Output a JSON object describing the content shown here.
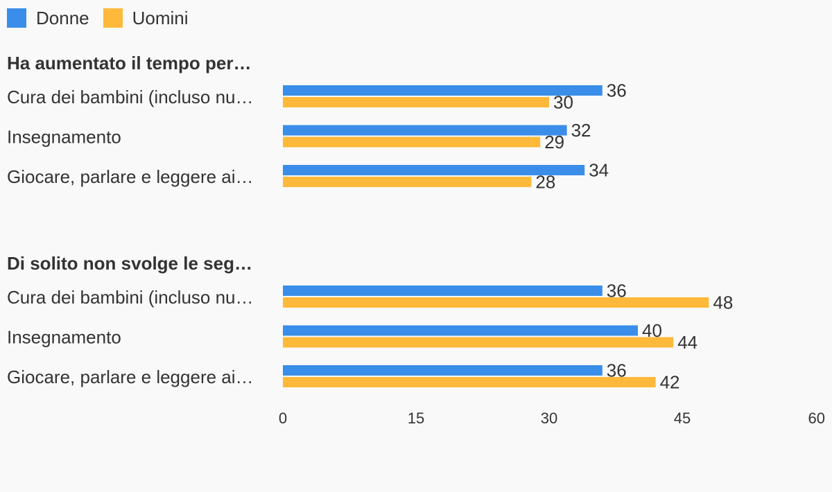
{
  "chart_data": {
    "type": "bar",
    "orientation": "horizontal",
    "legend_position": "top-left",
    "grid": false,
    "xlim": [
      0,
      60
    ],
    "ticks": [
      0,
      15,
      30,
      45,
      60
    ],
    "series": [
      {
        "name": "Donne",
        "color": "#3a8ee9"
      },
      {
        "name": "Uomini",
        "color": "#ffb93a"
      }
    ],
    "groups": [
      {
        "title": "Ha aumentato il tempo per…",
        "categories": [
          {
            "label": "Cura dei bambini (incluso nu…",
            "values": [
              36,
              30
            ]
          },
          {
            "label": "Insegnamento",
            "values": [
              32,
              29
            ]
          },
          {
            "label": "Giocare, parlare e leggere ai…",
            "values": [
              34,
              28
            ]
          }
        ]
      },
      {
        "title": "Di solito non svolge le seg…",
        "categories": [
          {
            "label": "Cura dei bambini (incluso nu…",
            "values": [
              36,
              48
            ]
          },
          {
            "label": "Insegnamento",
            "values": [
              40,
              44
            ]
          },
          {
            "label": "Giocare, parlare e leggere ai…",
            "values": [
              36,
              42
            ]
          }
        ]
      }
    ]
  }
}
